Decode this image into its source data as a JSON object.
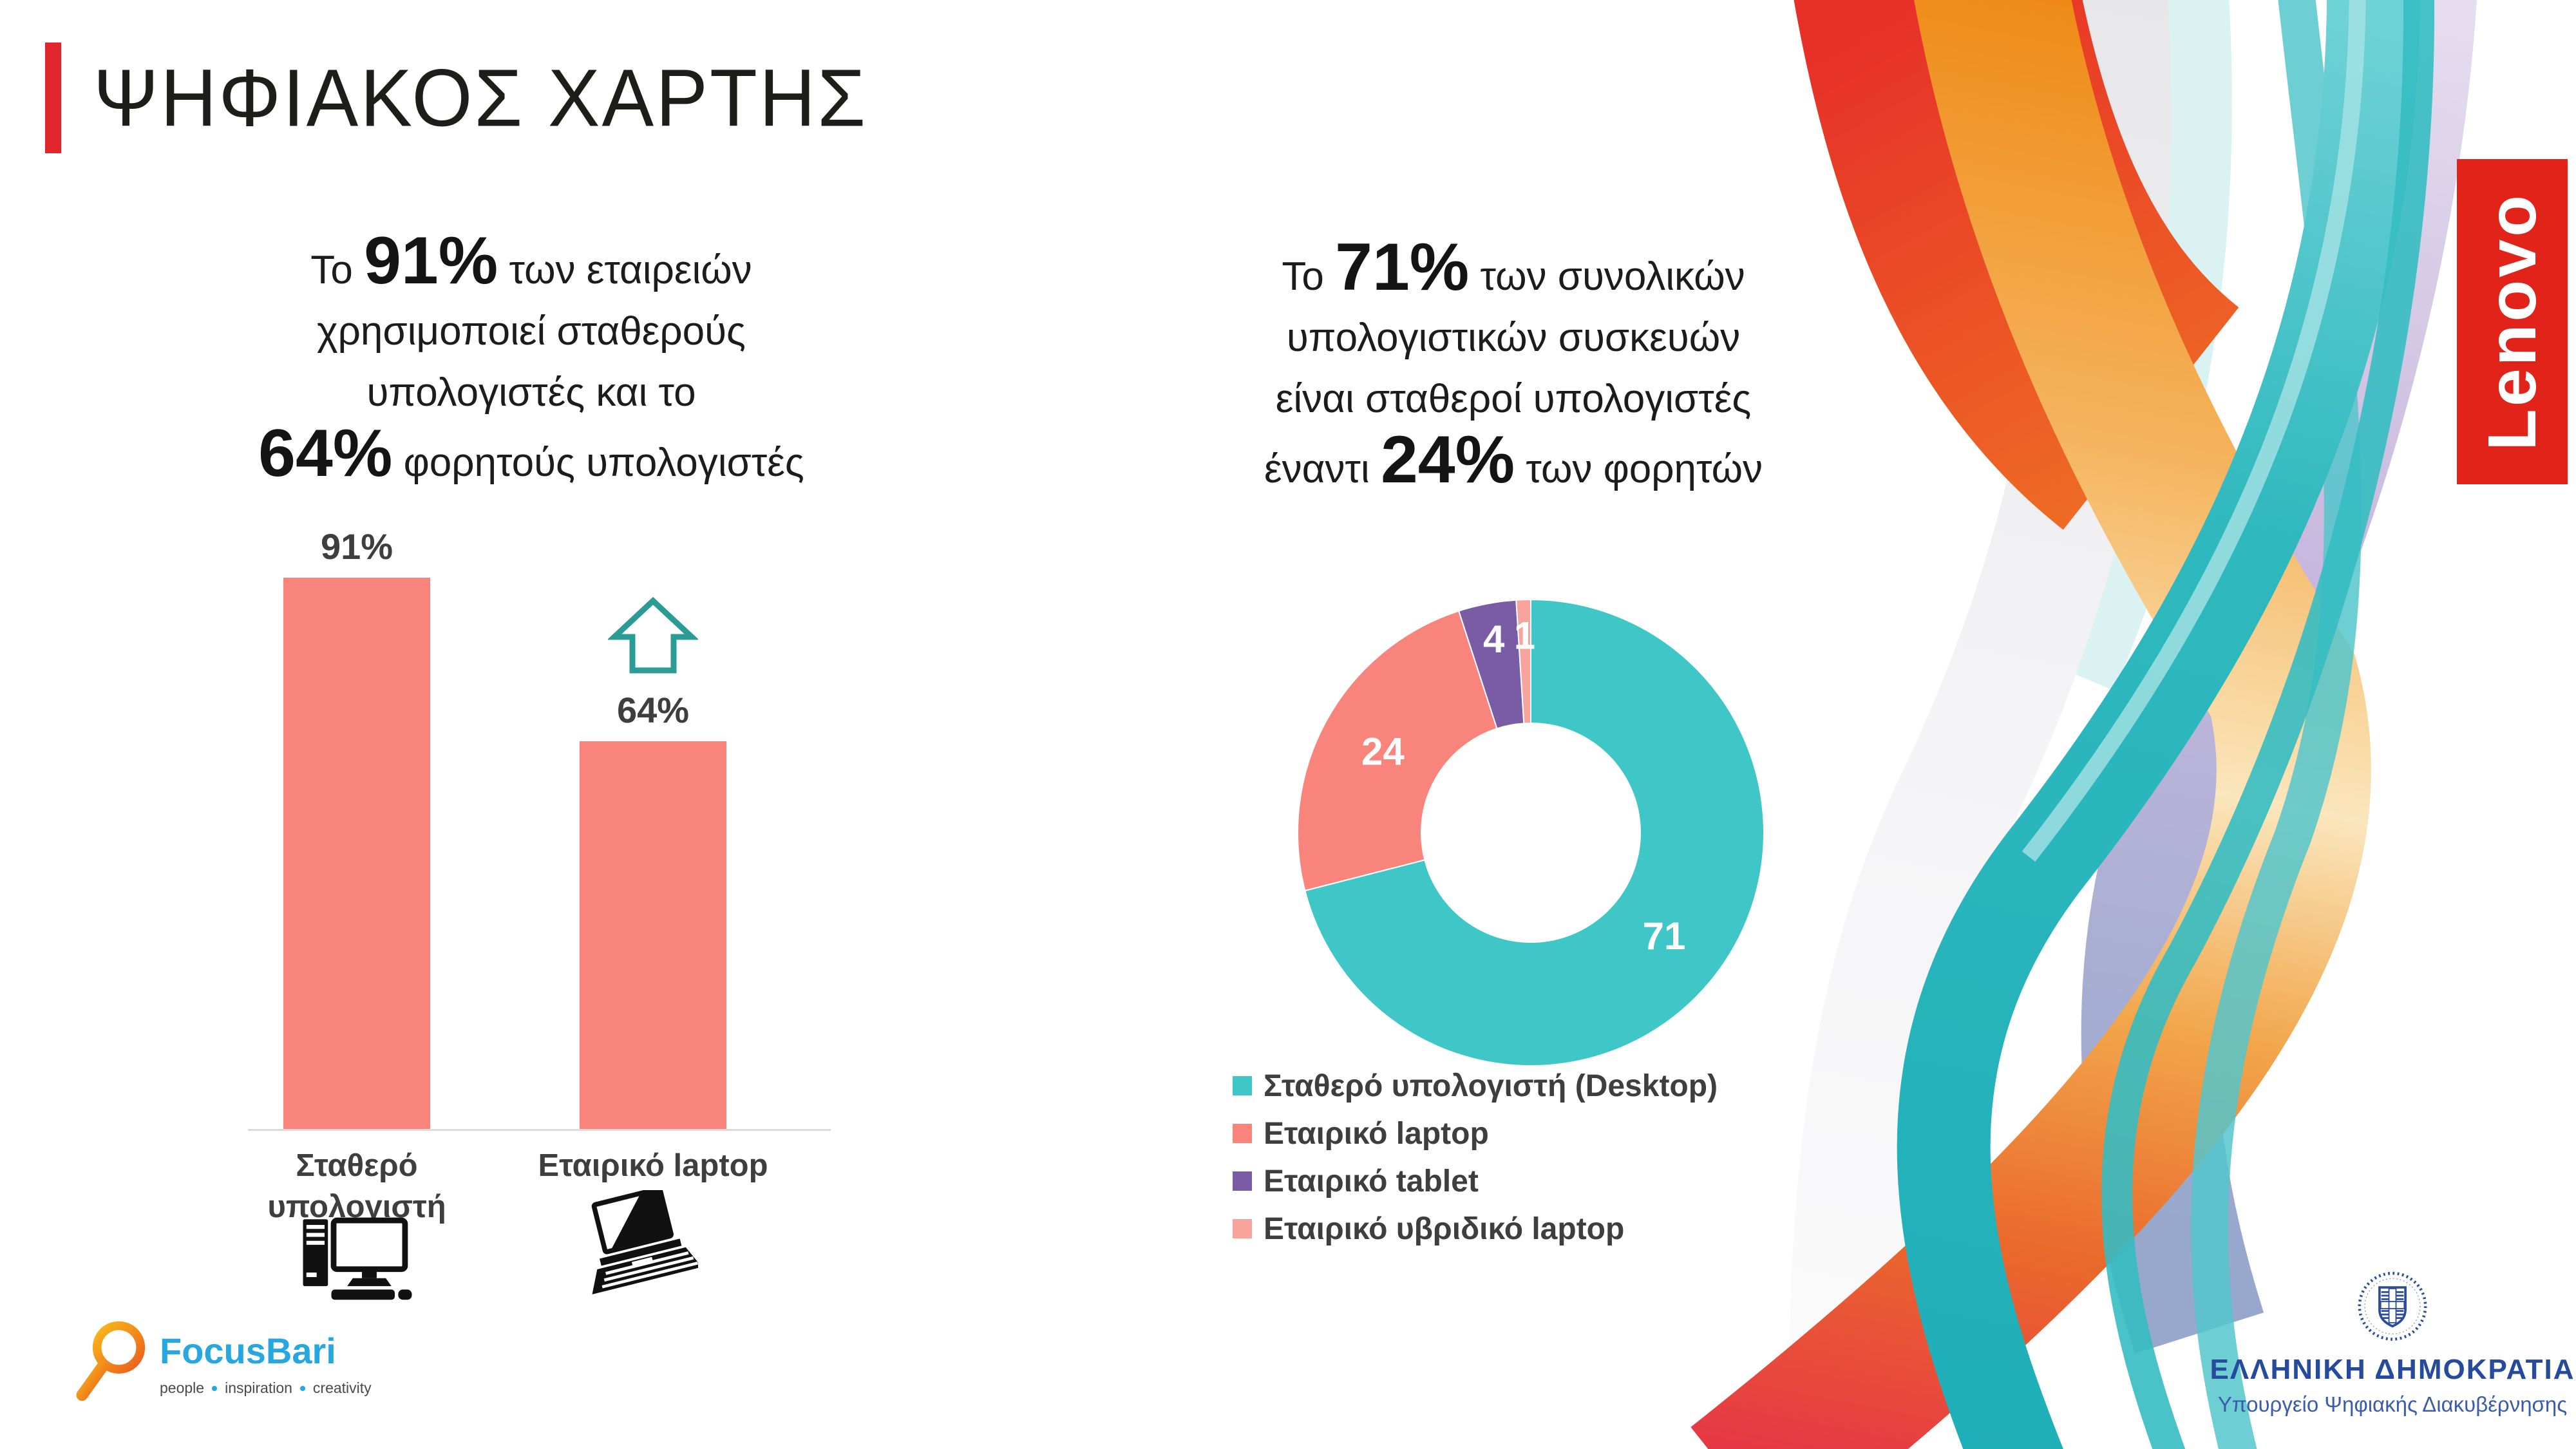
{
  "header": {
    "title": "ΨΗΦΙΑΚΟΣ ΧΑΡΤΗΣ",
    "accent_color": "#E0262B"
  },
  "left_panel": {
    "text": {
      "line1_pre": "Το",
      "line1_stat": "91%",
      "line1_post": "των εταιρειών",
      "line2": "χρησιμοποιεί σταθερούς",
      "line3": "υπολογιστές και το",
      "line4_stat": "64%",
      "line4_post": "φορητούς υπολογιστές"
    }
  },
  "right_panel": {
    "text": {
      "line1_pre": "Το",
      "line1_stat": "71%",
      "line1_post": "των συνολικών",
      "line2": "υπολογιστικών συσκευών",
      "line3": "είναι σταθεροί υπολογιστές",
      "line4_pre": "έναντι",
      "line4_stat": "24%",
      "line4_post": "των φορητών"
    }
  },
  "chart_data": [
    {
      "type": "bar",
      "categories": [
        "Σταθερό υπολογιστή",
        "Εταιρικό laptop"
      ],
      "values": [
        91,
        64
      ],
      "value_labels": [
        "91%",
        "64%"
      ],
      "unit": "%",
      "ylim": [
        0,
        100
      ],
      "grid": false,
      "bar_color": "#F8847C",
      "label_color": "#3E3E3E",
      "annotation": "teal outlined up-arrow above the 'Εταιρικό laptop' bar",
      "category_icons": [
        "desktop-computer",
        "laptop"
      ]
    },
    {
      "type": "pie",
      "subtype": "donut",
      "labels": [
        "Σταθερό υπολογιστή (Desktop)",
        "Εταιρικό laptop",
        "Εταιρικό tablet",
        "Εταιρικό υβριδικό laptop"
      ],
      "values": [
        71,
        24,
        4,
        1
      ],
      "colors": [
        "#3FC6C7",
        "#F8847C",
        "#7A5CA5",
        "#F8A39B"
      ],
      "value_label_color": "#FFFFFF",
      "start_angle_deg": -90,
      "direction": "clockwise",
      "legend_position": "bottom-left"
    }
  ],
  "branding": {
    "lenovo": {
      "label": "Lenovo",
      "bg_color": "#E2231A",
      "text_color": "#FFFFFF"
    },
    "focusbari": {
      "name": "FocusBari",
      "name_color": "#27A7DF",
      "tagline": [
        "people",
        "inspiration",
        "creativity"
      ]
    },
    "government": {
      "line1": "ΕΛΛΗΝΙΚΗ ΔΗΜΟΚΡΑΤΙΑ",
      "line2": "Υπουργείο Ψηφιακής Διακυβέρνησης",
      "color": "#264A9C"
    }
  },
  "decoration": {
    "ribbon_colors": [
      "#E73128",
      "#EF8A16",
      "#FAE6BC",
      "#EFEFF1",
      "#2FB9BF",
      "#C3B3DB",
      "#8FA0C8",
      "#E63546"
    ]
  }
}
